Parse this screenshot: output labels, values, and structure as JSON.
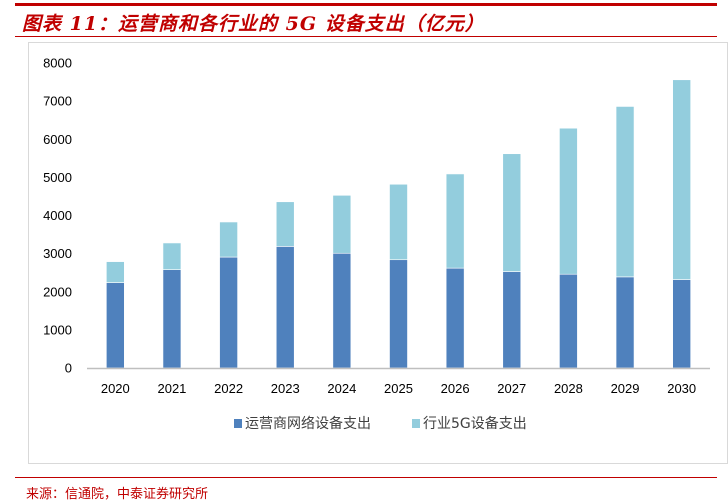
{
  "title": "图表 11：运营商和各行业的 5G 设备支出（亿元）",
  "source": "来源：信通院，中泰证券研究所",
  "chart_data": {
    "type": "bar",
    "stacked": true,
    "title": "图表 11：运营商和各行业的 5G 设备支出（亿元）",
    "categories": [
      "2020",
      "2021",
      "2022",
      "2023",
      "2024",
      "2025",
      "2026",
      "2027",
      "2028",
      "2029",
      "2030"
    ],
    "series": [
      {
        "name": "运营商网络设备支出",
        "color": "#4f81bd",
        "values": [
          2240,
          2580,
          2910,
          3190,
          3010,
          2840,
          2620,
          2530,
          2460,
          2390,
          2320
        ]
      },
      {
        "name": "行业5G设备支出",
        "color": "#93cddd",
        "values": [
          550,
          700,
          920,
          1170,
          1520,
          1980,
          2470,
          3090,
          3830,
          4470,
          5240
        ]
      }
    ],
    "ylim": [
      0,
      8000
    ],
    "yticks": [
      "0",
      "1000",
      "2000",
      "3000",
      "4000",
      "5000",
      "6000",
      "7000",
      "8000"
    ],
    "grid": false,
    "legend": "bottom",
    "xlabel": "",
    "ylabel": ""
  }
}
